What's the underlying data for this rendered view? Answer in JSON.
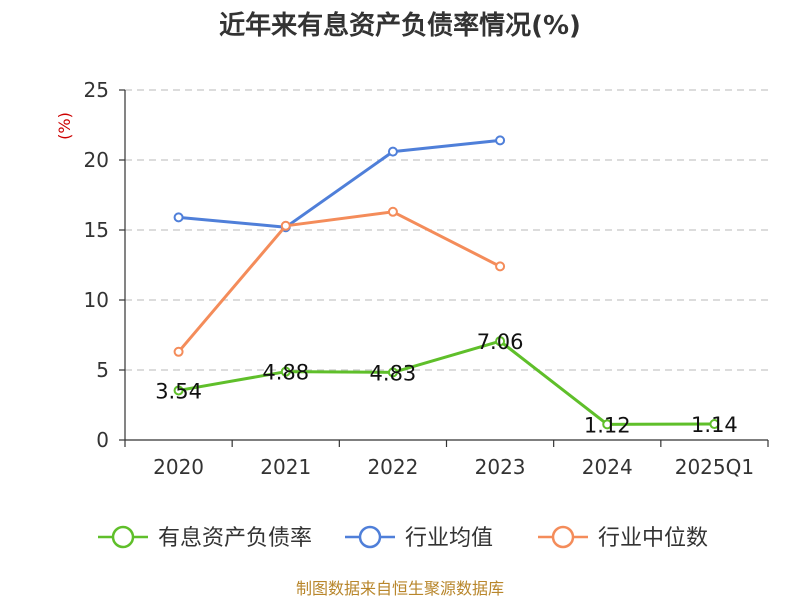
{
  "chart_data": {
    "type": "line",
    "title": "近年来有息资产负债率情况(%)",
    "y_unit": "(%)",
    "categories": [
      "2020",
      "2021",
      "2022",
      "2023",
      "2024",
      "2025Q1"
    ],
    "ylim": [
      0,
      25
    ],
    "yticks": [
      0,
      5,
      10,
      15,
      20,
      25
    ],
    "grid": true,
    "legend_position": "bottom",
    "series": [
      {
        "name": "有息资产负债率",
        "color": "#5fbf2a",
        "values": [
          3.54,
          4.88,
          4.83,
          7.06,
          1.12,
          1.14
        ],
        "labels": [
          "3.54",
          "4.88",
          "4.83",
          "7.06",
          "1.12",
          "1.14"
        ]
      },
      {
        "name": "行业均值",
        "color": "#4f7fd9",
        "values": [
          15.9,
          15.2,
          20.6,
          21.4,
          null,
          null
        ]
      },
      {
        "name": "行业中位数",
        "color": "#f48c5a",
        "values": [
          6.3,
          15.3,
          16.3,
          12.4,
          null,
          null
        ]
      }
    ]
  },
  "source": "制图数据来自恒生聚源数据库"
}
